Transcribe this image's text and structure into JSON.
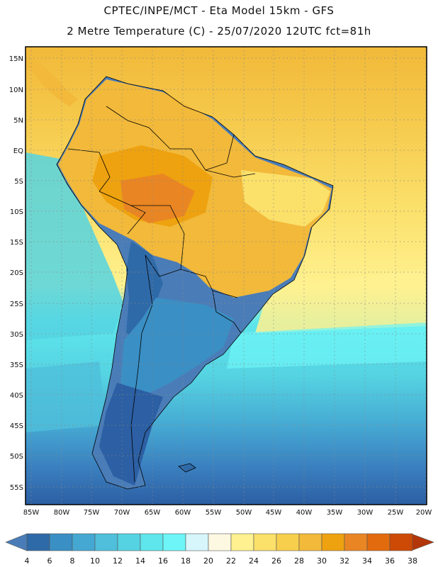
{
  "header": {
    "line1": "CPTEC/INPE/MCT -  Eta Model 15km - GFS",
    "line2": "2 Metre Temperature (C) - 25/07/2020 12UTC fct=81h"
  },
  "map": {
    "lat_labels": [
      "15N",
      "10N",
      "5N",
      "EQ",
      "5S",
      "10S",
      "15S",
      "20S",
      "25S",
      "30S",
      "35S",
      "40S",
      "45S",
      "50S",
      "55S"
    ],
    "lon_labels": [
      "85W",
      "80W",
      "75W",
      "70W",
      "65W",
      "60W",
      "55W",
      "50W",
      "45W",
      "40W",
      "35W",
      "30W",
      "25W",
      "20W"
    ]
  },
  "colorbar": {
    "labels": [
      "4",
      "6",
      "8",
      "10",
      "12",
      "14",
      "16",
      "18",
      "20",
      "22",
      "24",
      "26",
      "28",
      "30",
      "32",
      "34",
      "36",
      "38"
    ],
    "colors": [
      "#4a7db8",
      "#2f6aa8",
      "#3a8fc4",
      "#45a8d2",
      "#4fbfdb",
      "#55d3e2",
      "#5ee6ec",
      "#6ef5f7",
      "#d6f6fb",
      "#fdf8e2",
      "#fff18f",
      "#fbe06a",
      "#f8cf4d",
      "#f2b93a",
      "#eea20f",
      "#e98623",
      "#e26b0e",
      "#cc4a06",
      "#b2360a"
    ]
  }
}
